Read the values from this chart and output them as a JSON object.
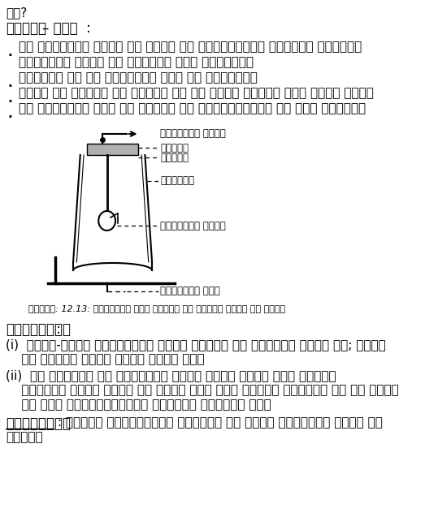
{
  "title_line1": "है?",
  "title_line2": "उत्तर– विध  :",
  "bullet_points": [
    "एक विद्युत घंटी और काँच का वायुरुद्ध बेलजार लीजिए।",
    "विद्युत घंटी को बेलजार में लटकाइए।",
    "बेलजार को एक निर्वात पंप से जोड़िए।",
    "घंटी के स्विच को दबाने पर आप उसकी ध्वनि सुन सकते हैं।",
    "अब निर्वात पंप को चलाइए और प्रेक्षणों को नोट कीजिए।"
  ],
  "diagram_labels": {
    "vidyut_dhara": "विद्युत धारा",
    "switch": "स्विच",
    "cork": "कार्क",
    "beljar": "बेलजार",
    "vidyut_ghanti": "विद्युत घंटी",
    "nirvat_pump": "निर्वात पंप"
  },
  "caption": "चित्र: 12.13: निर्वात में ध्वनि का संचरण नहीं हो सकता",
  "prekshan_title": "प्रेक्षण  :",
  "prekshan_i_1": "(i)  जैसे-जैसे अधिकाधिक वायु पात्र से निकाली जाती है; घंटी",
  "prekshan_i_2": "    की ध्वनि धीमी होती जाती है।",
  "prekshan_ii_1": "(ii)  जब बेलजार से संपूर्ण वायु निकल जाती है। ध्वनि",
  "prekshan_ii_2": "    बिलकुल नहीं सुनी जा सकती है। अतः ध्वनि तरंगों को ले जाने",
  "prekshan_ii_3": "    के लिए द्रव्यात्मक माध्यम आवश्यक है।",
  "nishkarsh_label": "निष्कर्ष",
  "nishkarsh_text1": " : ध्वनि द्रव्यमान माध्यम के बिना संचारित नहीं हो",
  "nishkarsh_text2": "सकती।",
  "bg_color": "#ffffff",
  "text_color": "#000000"
}
